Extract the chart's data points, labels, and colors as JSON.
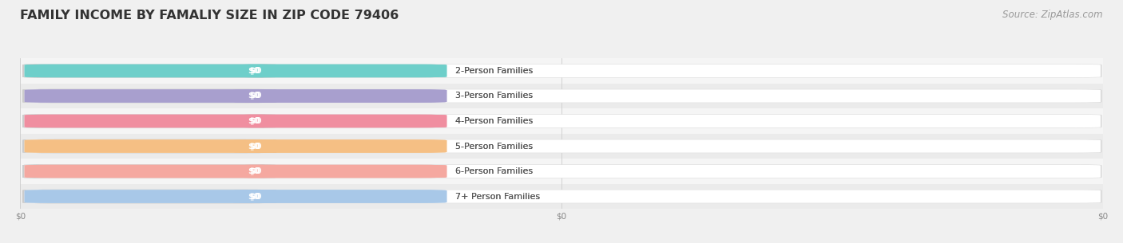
{
  "title": "FAMILY INCOME BY FAMALIY SIZE IN ZIP CODE 79406",
  "source": "Source: ZipAtlas.com",
  "categories": [
    "2-Person Families",
    "3-Person Families",
    "4-Person Families",
    "5-Person Families",
    "6-Person Families",
    "7+ Person Families"
  ],
  "values": [
    0,
    0,
    0,
    0,
    0,
    0
  ],
  "bar_colors": [
    "#6ecfca",
    "#a89fce",
    "#f08ea0",
    "#f5bf84",
    "#f5a8a0",
    "#a8c8e8"
  ],
  "value_labels": [
    "$0",
    "$0",
    "$0",
    "$0",
    "$0",
    "$0"
  ],
  "background_color": "#f0f0f0",
  "row_bg_odd": "#ebebeb",
  "row_bg_even": "#f5f5f5",
  "title_fontsize": 11.5,
  "source_fontsize": 8.5,
  "label_fontsize": 8,
  "value_fontsize": 8
}
